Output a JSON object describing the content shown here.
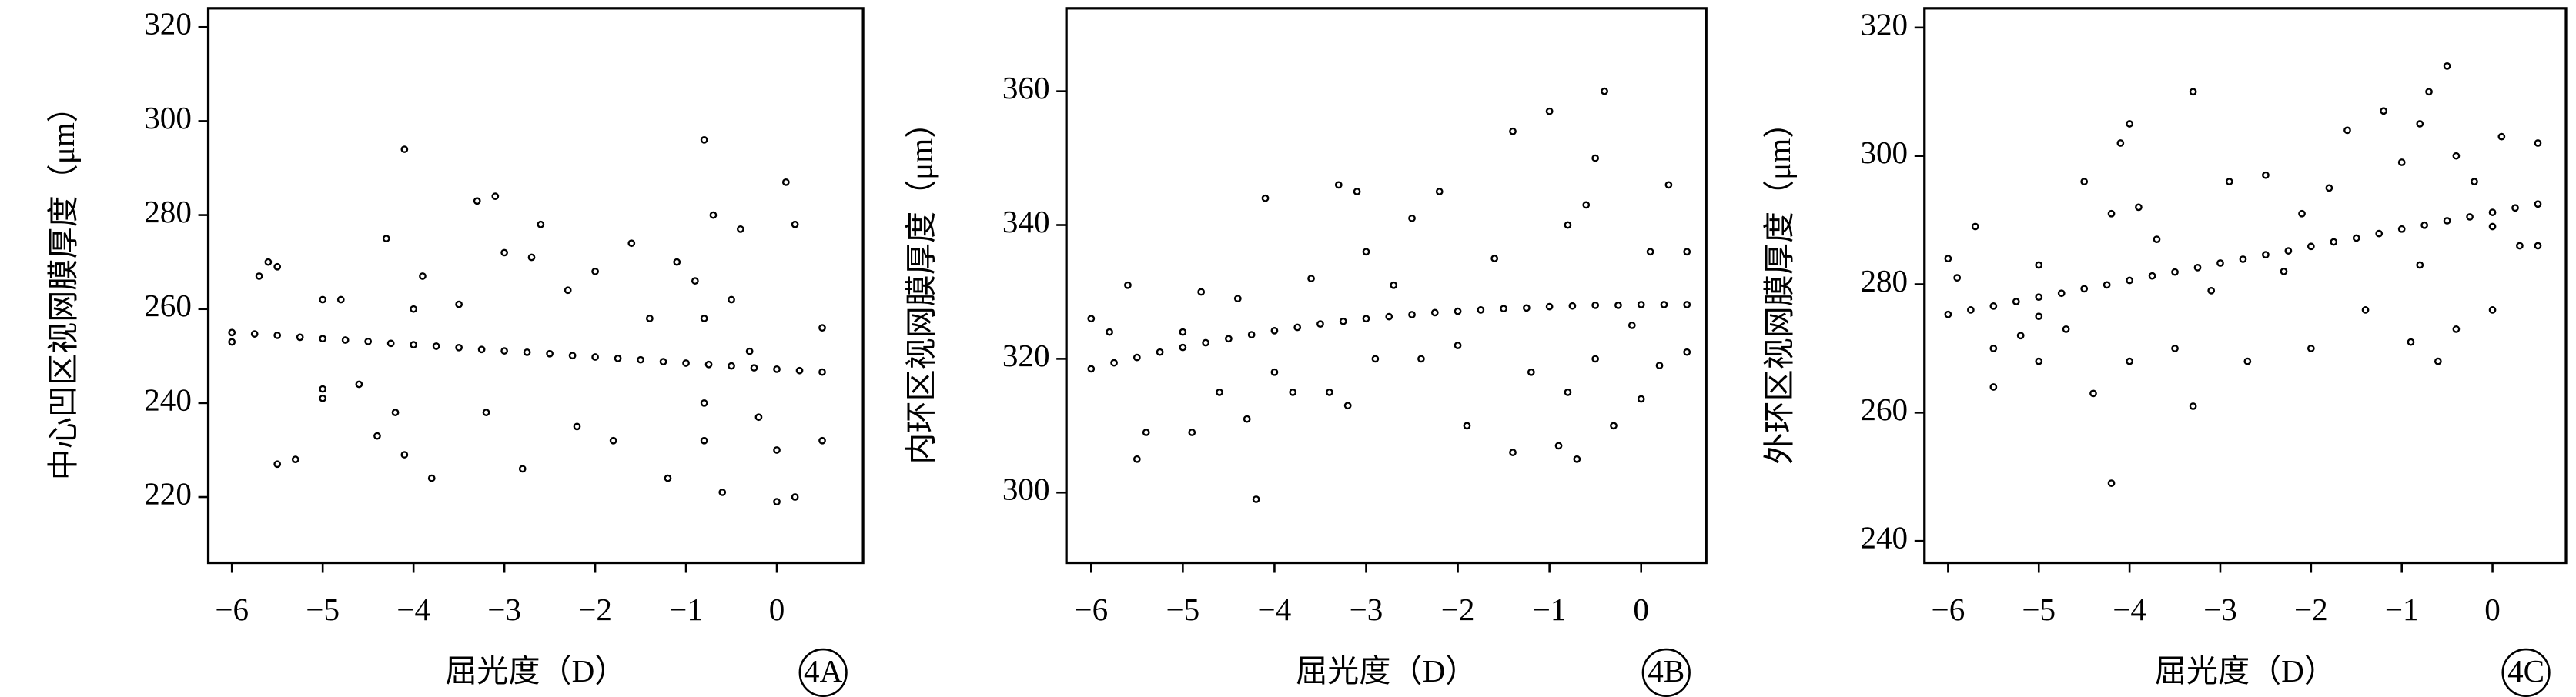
{
  "chart_data": [
    {
      "type": "scatter",
      "ylabel": "中心凹区视网膜厚度（μm）",
      "xlabel": "屈光度（D）",
      "panel": "4A",
      "color": "#000000",
      "xlim": [
        -6.26,
        0.95
      ],
      "ylim": [
        206,
        324
      ],
      "xticks": [
        {
          "value": -6,
          "label": "−6"
        },
        {
          "value": -5,
          "label": "−5"
        },
        {
          "value": -4,
          "label": "−4"
        },
        {
          "value": -3,
          "label": "−3"
        },
        {
          "value": -2,
          "label": "−2"
        },
        {
          "value": -1,
          "label": "−1"
        },
        0
      ],
      "yticks": [
        220,
        240,
        260,
        280,
        300,
        320
      ],
      "x": [
        -6,
        -5.75,
        -5.5,
        -5.25,
        -5,
        -4.75,
        -4.5,
        -4.25,
        -4,
        -3.75,
        -3.5,
        -3.25,
        -3,
        -2.75,
        -2.5,
        -2.25,
        -2,
        -1.75,
        -1.5,
        -1.25,
        -1,
        -0.75,
        -0.5,
        -0.25,
        0,
        0.25,
        0.5,
        -6,
        -5.7,
        -5.6,
        -5.5,
        -5.5,
        -5.3,
        -5,
        -5,
        -5,
        -4.8,
        -4.6,
        -4.4,
        -4.3,
        -4.2,
        -4.1,
        -4.1,
        -4,
        -3.9,
        -3.8,
        -3.5,
        -3.3,
        -3.2,
        -3.1,
        -3,
        -2.8,
        -2.7,
        -2.6,
        -2.3,
        -2.2,
        -2,
        -1.8,
        -1.6,
        -1.4,
        -1.2,
        -1.1,
        -0.9,
        -0.8,
        -0.8,
        -0.8,
        -0.8,
        -0.7,
        -0.6,
        -0.5,
        -0.4,
        -0.3,
        -0.2,
        0,
        0,
        0.1,
        0.2,
        0.2,
        0.5,
        0.5
      ],
      "values": [
        255.0,
        254.7,
        254.4,
        254.0,
        253.7,
        253.4,
        253.1,
        252.7,
        252.4,
        252.1,
        251.8,
        251.4,
        251.1,
        250.8,
        250.5,
        250.1,
        249.8,
        249.5,
        249.2,
        248.8,
        248.5,
        248.2,
        247.9,
        247.5,
        247.2,
        246.9,
        246.6,
        253,
        267,
        270,
        269,
        227,
        228,
        262,
        243,
        241,
        262,
        244,
        233,
        275,
        238,
        294,
        229,
        260,
        267,
        224,
        261,
        283,
        238,
        284,
        272,
        226,
        271,
        278,
        264,
        235,
        268,
        232,
        274,
        258,
        224,
        270,
        266,
        296,
        258,
        240,
        232,
        280,
        221,
        262,
        277,
        251,
        237,
        230,
        219,
        287,
        278,
        220,
        256,
        232
      ]
    },
    {
      "type": "scatter",
      "ylabel": "内环区视网膜厚度（μm）",
      "xlabel": "屈光度（D）",
      "panel": "4B",
      "color": "#000000",
      "xlim": [
        -6.27,
        0.71
      ],
      "ylim": [
        289.5,
        372.4
      ],
      "xticks": [
        {
          "value": -6,
          "label": "−6"
        },
        {
          "value": -5,
          "label": "−5"
        },
        {
          "value": -4,
          "label": "−4"
        },
        {
          "value": -3,
          "label": "−3"
        },
        {
          "value": -2,
          "label": "−2"
        },
        {
          "value": -1,
          "label": "−1"
        },
        0
      ],
      "yticks": [
        300,
        320,
        340,
        360
      ],
      "x": [
        -6,
        -5.75,
        -5.5,
        -5.25,
        -5,
        -4.75,
        -4.5,
        -4.25,
        -4,
        -3.75,
        -3.5,
        -3.25,
        -3,
        -2.75,
        -2.5,
        -2.25,
        -2,
        -1.75,
        -1.5,
        -1.25,
        -1,
        -0.75,
        -0.5,
        -0.25,
        0,
        0.25,
        0.5,
        -6,
        -5.8,
        -5.6,
        -5.5,
        -5.4,
        -5,
        -4.9,
        -4.8,
        -4.6,
        -4.4,
        -4.3,
        -4.2,
        -4.1,
        -4,
        -3.8,
        -3.6,
        -3.4,
        -3.3,
        -3.2,
        -3.1,
        -3,
        -2.9,
        -2.7,
        -2.5,
        -2.4,
        -2.2,
        -2,
        -1.9,
        -1.6,
        -1.4,
        -1.4,
        -1.2,
        -1,
        -0.9,
        -0.8,
        -0.8,
        -0.7,
        -0.6,
        -0.5,
        -0.5,
        -0.4,
        -0.3,
        -0.1,
        0,
        0.1,
        0.2,
        0.3,
        0.5,
        0.5
      ],
      "values": [
        318.5,
        319.4,
        320.2,
        321.0,
        321.7,
        322.4,
        323.0,
        323.6,
        324.2,
        324.7,
        325.2,
        325.6,
        326.0,
        326.3,
        326.6,
        326.9,
        327.1,
        327.3,
        327.5,
        327.6,
        327.8,
        327.9,
        328.0,
        328.0,
        328.1,
        328.1,
        328.1,
        326,
        324,
        331,
        305,
        309,
        324,
        309,
        330,
        315,
        329,
        311,
        299,
        344,
        318,
        315,
        332,
        315,
        346,
        313,
        345,
        336,
        320,
        331,
        341,
        320,
        345,
        322,
        310,
        335,
        306,
        354,
        318,
        357,
        307,
        340,
        315,
        305,
        343,
        350,
        320,
        360,
        310,
        325,
        314,
        336,
        319,
        346,
        321,
        336
      ]
    },
    {
      "type": "scatter",
      "ylabel": "外环区视网膜厚度（μm）",
      "xlabel": "屈光度（D）",
      "panel": "4C",
      "color": "#000000",
      "xlim": [
        -6.26,
        0.81
      ],
      "ylim": [
        236.6,
        323
      ],
      "xticks": [
        {
          "value": -6,
          "label": "−6"
        },
        {
          "value": -5,
          "label": "−5"
        },
        {
          "value": -4,
          "label": "−4"
        },
        {
          "value": -3,
          "label": "−3"
        },
        {
          "value": -2,
          "label": "−2"
        },
        {
          "value": -1,
          "label": "−1"
        },
        0
      ],
      "yticks": [
        240,
        260,
        280,
        300,
        320
      ],
      "x": [
        -6,
        -5.75,
        -5.5,
        -5.25,
        -5,
        -4.75,
        -4.5,
        -4.25,
        -4,
        -3.75,
        -3.5,
        -3.25,
        -3,
        -2.75,
        -2.5,
        -2.25,
        -2,
        -1.75,
        -1.5,
        -1.25,
        -1,
        -0.75,
        -0.5,
        -0.25,
        0,
        0.25,
        0.5,
        -6,
        -5.9,
        -5.7,
        -5.5,
        -5.5,
        -5.2,
        -5,
        -5,
        -5,
        -4.7,
        -4.5,
        -4.4,
        -4.2,
        -4.2,
        -4.1,
        -4,
        -4,
        -3.9,
        -3.7,
        -3.5,
        -3.3,
        -3.3,
        -3.1,
        -2.9,
        -2.7,
        -2.5,
        -2.3,
        -2.1,
        -2,
        -1.8,
        -1.6,
        -1.4,
        -1.2,
        -1,
        -0.9,
        -0.8,
        -0.8,
        -0.7,
        -0.6,
        -0.5,
        -0.4,
        -0.4,
        -0.2,
        0,
        0,
        0.1,
        0.3,
        0.5,
        0.5
      ],
      "values": [
        275.3,
        276.0,
        276.6,
        277.3,
        278.0,
        278.6,
        279.3,
        279.9,
        280.6,
        281.3,
        281.9,
        282.6,
        283.3,
        283.9,
        284.6,
        285.2,
        285.9,
        286.6,
        287.2,
        287.9,
        288.6,
        289.2,
        289.9,
        290.5,
        291.2,
        291.9,
        292.5,
        284,
        281,
        289,
        264,
        270,
        272,
        283,
        275,
        268,
        273,
        296,
        263,
        249,
        291,
        302,
        305,
        268,
        292,
        287,
        270,
        310,
        261,
        279,
        296,
        268,
        297,
        282,
        291,
        270,
        295,
        304,
        276,
        307,
        299,
        271,
        305,
        283,
        310,
        268,
        314,
        300,
        273,
        296,
        289,
        276,
        303,
        286,
        302,
        286
      ]
    }
  ]
}
